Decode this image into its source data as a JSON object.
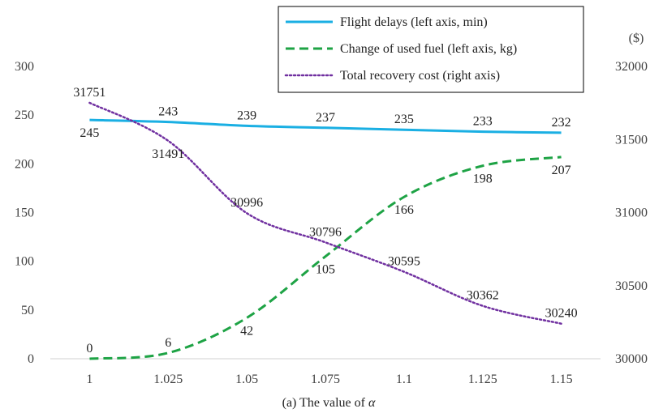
{
  "chart_data": {
    "type": "line",
    "categories": [
      "1",
      "1.025",
      "1.05",
      "1.075",
      "1.1",
      "1.125",
      "1.15"
    ],
    "xlabel_prefix": "(a) The value of ",
    "xlabel_symbol": "α",
    "left_axis": {
      "min": 0,
      "max": 300,
      "ticks": [
        0,
        50,
        100,
        150,
        200,
        250,
        300
      ]
    },
    "right_axis": {
      "min": 30000,
      "max": 32000,
      "ticks": [
        30000,
        30500,
        31000,
        31500,
        32000
      ],
      "unit": "($)"
    },
    "series": [
      {
        "name": "Flight delays (left axis, min)",
        "axis": "left",
        "color": "#1AAFE3",
        "dash": "solid",
        "values": [
          245,
          243,
          239,
          237,
          235,
          233,
          232
        ],
        "label_pos": [
          "below",
          "above",
          "above",
          "above",
          "above",
          "above",
          "above"
        ]
      },
      {
        "name": "Change of used fuel (left axis, kg)",
        "axis": "left",
        "color": "#1EA345",
        "dash": "dashed",
        "values": [
          0,
          6,
          42,
          105,
          166,
          198,
          207
        ],
        "label_pos": [
          "above",
          "above",
          "below",
          "below",
          "below",
          "below",
          "below"
        ]
      },
      {
        "name": "Total recovery cost (right axis)",
        "axis": "right",
        "color": "#7030A0",
        "dash": "dotted",
        "values": [
          31751,
          31491,
          30996,
          30796,
          30595,
          30362,
          30240
        ],
        "label_pos": [
          "above",
          "below",
          "above",
          "above",
          "above",
          "above",
          "above"
        ]
      }
    ]
  }
}
